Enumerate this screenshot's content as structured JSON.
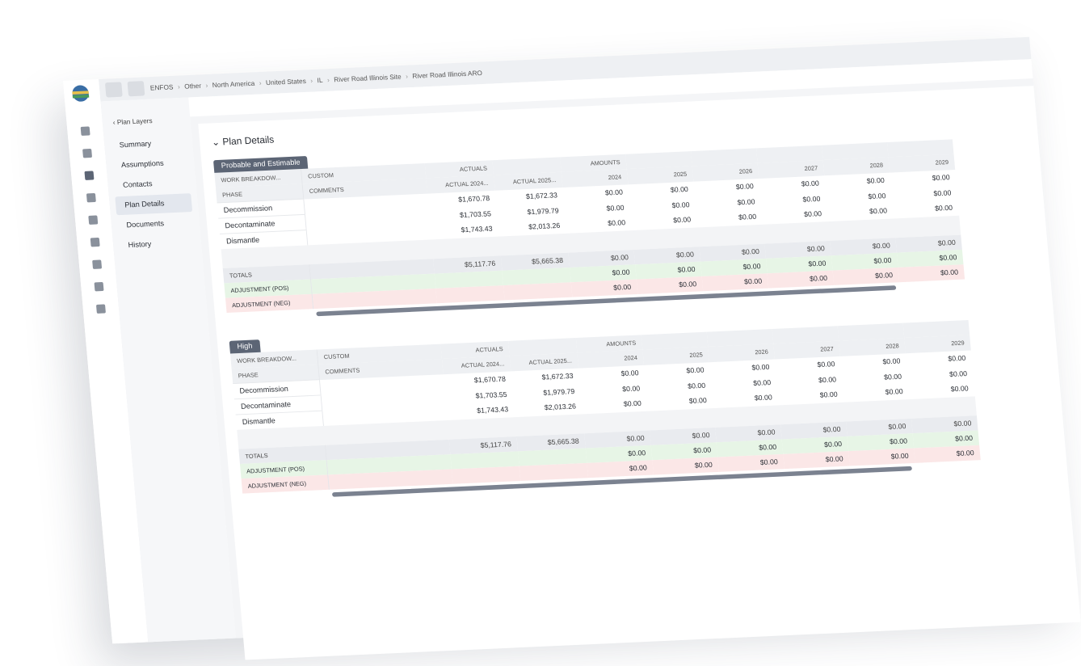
{
  "breadcrumb": [
    "ENFOS",
    "Other",
    "North America",
    "United States",
    "IL",
    "River Road Illinois Site",
    "River Road Illinois ARO"
  ],
  "nav": {
    "back": "Plan Layers",
    "items": [
      "Summary",
      "Assumptions",
      "Contacts",
      "Plan Details",
      "Documents",
      "History"
    ],
    "active": 3
  },
  "page_title": "Plan Details",
  "sections": [
    {
      "title": "Probable and Estimable",
      "header_rows": [
        [
          "WORK BREAKDOW...",
          "CUSTOM",
          "ACTUALS",
          null,
          "AMOUNTS",
          null,
          null,
          null,
          null,
          null
        ],
        [
          "PHASE",
          "COMMENTS",
          "ACTUAL 2024...",
          "ACTUAL 2025...",
          "2024",
          "2025",
          "2026",
          "2027",
          "2028",
          "2029"
        ]
      ],
      "rows": [
        [
          "Decommission",
          null,
          "$1,670.78",
          "$1,672.33",
          "$0.00",
          "$0.00",
          "$0.00",
          "$0.00",
          "$0.00",
          "$0.00"
        ],
        [
          "Decontaminate",
          null,
          "$1,703.55",
          "$1,979.79",
          "$0.00",
          "$0.00",
          "$0.00",
          "$0.00",
          "$0.00",
          "$0.00"
        ],
        [
          "Dismantle",
          null,
          "$1,743.43",
          "$2,013.26",
          "$0.00",
          "$0.00",
          "$0.00",
          "$0.00",
          "$0.00",
          "$0.00"
        ]
      ],
      "summary_rows": [
        [
          "TOTALS",
          null,
          "$5,117.76",
          "$5,665.38",
          "$0.00",
          "$0.00",
          "$0.00",
          "$0.00",
          "$0.00",
          "$0.00"
        ],
        [
          "ADJUSTMENT (POS)",
          null,
          null,
          null,
          "$0.00",
          "$0.00",
          "$0.00",
          "$0.00",
          "$0.00",
          "$0.00"
        ],
        [
          "ADJUSTMENT (NEG)",
          null,
          null,
          null,
          "$0.00",
          "$0.00",
          "$0.00",
          "$0.00",
          "$0.00",
          "$0.00"
        ]
      ]
    },
    {
      "title": "High",
      "header_rows": [
        [
          "WORK BREAKDOW...",
          "CUSTOM",
          "ACTUALS",
          null,
          "AMOUNTS",
          null,
          null,
          null,
          null,
          null
        ],
        [
          "PHASE",
          "COMMENTS",
          "ACTUAL 2024...",
          "ACTUAL 2025...",
          "2024",
          "2025",
          "2026",
          "2027",
          "2028",
          "2029"
        ]
      ],
      "rows": [
        [
          "Decommission",
          null,
          "$1,670.78",
          "$1,672.33",
          "$0.00",
          "$0.00",
          "$0.00",
          "$0.00",
          "$0.00",
          "$0.00"
        ],
        [
          "Decontaminate",
          null,
          "$1,703.55",
          "$1,979.79",
          "$0.00",
          "$0.00",
          "$0.00",
          "$0.00",
          "$0.00",
          "$0.00"
        ],
        [
          "Dismantle",
          null,
          "$1,743.43",
          "$2,013.26",
          "$0.00",
          "$0.00",
          "$0.00",
          "$0.00",
          "$0.00",
          "$0.00"
        ]
      ],
      "summary_rows": [
        [
          "TOTALS",
          null,
          "$5,117.76",
          "$5,665.38",
          "$0.00",
          "$0.00",
          "$0.00",
          "$0.00",
          "$0.00",
          "$0.00"
        ],
        [
          "ADJUSTMENT (POS)",
          null,
          null,
          null,
          "$0.00",
          "$0.00",
          "$0.00",
          "$0.00",
          "$0.00",
          "$0.00"
        ],
        [
          "ADJUSTMENT (NEG)",
          null,
          null,
          null,
          "$0.00",
          "$0.00",
          "$0.00",
          "$0.00",
          "$0.00",
          "$0.00"
        ]
      ]
    }
  ]
}
